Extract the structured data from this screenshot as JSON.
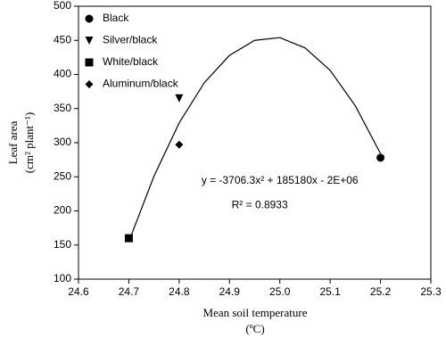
{
  "chart_data": {
    "type": "scatter",
    "xlabel": "Mean soil temperature",
    "xlabel_unit": "(ºC)",
    "ylabel": "Leaf area",
    "ylabel_unit": "(cm² plant⁻¹)",
    "xlim": [
      24.6,
      25.3
    ],
    "xticks": [
      24.6,
      24.7,
      24.8,
      24.9,
      {
        "value": 25,
        "label": "25.0"
      },
      25.1,
      25.2,
      25.3
    ],
    "ylim": [
      100,
      500
    ],
    "yticks": [
      100,
      150,
      200,
      250,
      300,
      350,
      400,
      450,
      500
    ],
    "legend": "top-left",
    "series": [
      {
        "name": "Black",
        "color": "#000000",
        "marker": "circle",
        "x": [
          25.2
        ],
        "values": [
          278
        ]
      },
      {
        "name": "Silver/black",
        "color": "#000000",
        "marker": "triangle-down",
        "x": [
          24.8
        ],
        "values": [
          365
        ]
      },
      {
        "name": "White/black",
        "color": "#000000",
        "marker": "square",
        "x": [
          24.7
        ],
        "values": [
          160
        ]
      },
      {
        "name": "Aluminum/black",
        "color": "#000000",
        "marker": "diamond",
        "x": [
          24.8
        ],
        "values": [
          297
        ]
      }
    ],
    "curve": {
      "color": "#000000",
      "x": [
        24.7,
        24.75,
        24.8,
        24.85,
        24.9,
        24.95,
        25.0,
        25.05,
        25.1,
        25.15,
        25.2
      ],
      "values": [
        155,
        251,
        329,
        388,
        428,
        450,
        454,
        439,
        406,
        354,
        284
      ]
    },
    "annotations": [
      {
        "text": "y = -3706.3x² + 185180x - 2E+06",
        "x": 25.0,
        "y": 244
      },
      {
        "text": "R² = 0.8933",
        "x": 24.96,
        "y": 208
      }
    ]
  }
}
